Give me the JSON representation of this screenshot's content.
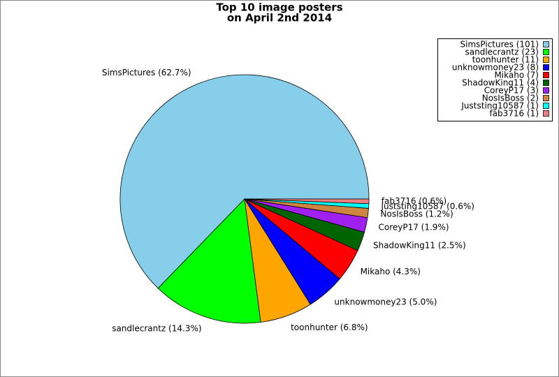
{
  "chart_data": {
    "type": "pie",
    "title": [
      "Top 10 image posters",
      "on April 2nd 2014"
    ],
    "values": [
      62.7,
      14.3,
      6.8,
      5.0,
      4.3,
      2.5,
      1.9,
      1.2,
      0.6,
      0.6
    ],
    "value_labels": [
      "SimsPictures (62.7%)",
      "sandlecrantz (14.3%)",
      "toonhunter (6.8%)",
      "unknowmoney23 (5.0%)",
      "Mikaho (4.3%)",
      "ShadowKing11 (2.5%)",
      "CoreyP17 (1.9%)",
      "NosIsBoss (1.2%)",
      "Juststing10587 (0.6%)",
      "fab3716 (0.6%)"
    ],
    "legend": [
      "SimsPictures (101)",
      "sandlecrantz (23)",
      "toonhunter (11)",
      "unknowmoney23 (8)",
      "Mikaho (7)",
      "ShadowKing11 (4)",
      "CoreyP17 (3)",
      "NosIsBoss (2)",
      "Juststing10587 (1)",
      "fab3716 (1)"
    ],
    "colors": [
      "#87ceeb",
      "#00ff00",
      "#ffa500",
      "#0000ff",
      "#ff0000",
      "#006400",
      "#a020f0",
      "#cd853f",
      "#00ffff",
      "#f08080"
    ],
    "legend_position": "upper right"
  }
}
